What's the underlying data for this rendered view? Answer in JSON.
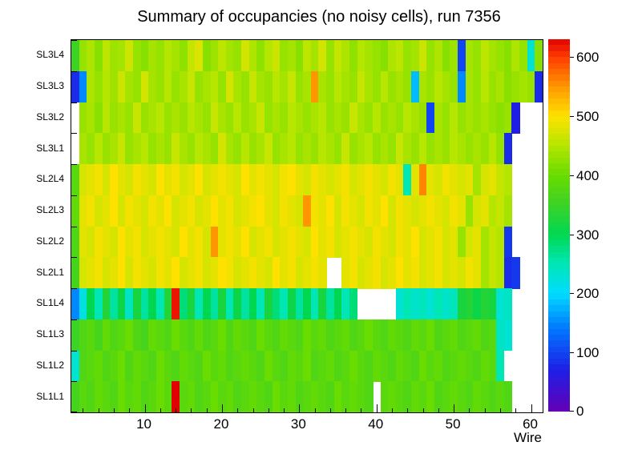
{
  "title": "Summary of occupancies (no noisy cells), run 7356",
  "axes": {
    "x_label": "Wire",
    "x_ticks": [
      10,
      20,
      30,
      40,
      50,
      60
    ],
    "colorbar_ticks": [
      0,
      100,
      200,
      300,
      400,
      500,
      600
    ]
  },
  "chart_data": {
    "type": "heatmap",
    "title": "Summary of occupancies (no noisy cells), run 7356",
    "xlabel": "Wire",
    "x_range": [
      1,
      61
    ],
    "zmax": 630,
    "legend_position": "right-colorbar",
    "grid": false,
    "palette": [
      {
        "value": 0,
        "color": "#6400b4"
      },
      {
        "value": 70,
        "color": "#1e1ee6"
      },
      {
        "value": 140,
        "color": "#0078ff"
      },
      {
        "value": 200,
        "color": "#00dcff"
      },
      {
        "value": 250,
        "color": "#00e6b4"
      },
      {
        "value": 300,
        "color": "#00d750"
      },
      {
        "value": 350,
        "color": "#3cd226"
      },
      {
        "value": 400,
        "color": "#69dc00"
      },
      {
        "value": 450,
        "color": "#b4e600"
      },
      {
        "value": 500,
        "color": "#ffe100"
      },
      {
        "value": 550,
        "color": "#ff9600"
      },
      {
        "value": 600,
        "color": "#ff3c00"
      },
      {
        "value": 630,
        "color": "#e10000"
      }
    ],
    "rows": [
      {
        "label": "SL3L4",
        "values": [
          350,
          430,
          445,
          420,
          455,
          435,
          440,
          465,
          430,
          420,
          440,
          430,
          450,
          440,
          425,
          460,
          475,
          420,
          435,
          455,
          440,
          430,
          470,
          445,
          425,
          450,
          465,
          430,
          440,
          420,
          455,
          440,
          470,
          430,
          460,
          445,
          425,
          450,
          440,
          430,
          420,
          445,
          455,
          430,
          440,
          465,
          430,
          445,
          420,
          435,
          100,
          440,
          430,
          455,
          440,
          430,
          420,
          445,
          430,
          230,
          420
        ]
      },
      {
        "label": "SL3L3",
        "values": [
          80,
          150,
          445,
          430,
          450,
          435,
          465,
          440,
          430,
          470,
          440,
          432,
          452,
          430,
          442,
          462,
          430,
          442,
          452,
          430,
          470,
          442,
          430,
          462,
          440,
          432,
          452,
          440,
          462,
          430,
          442,
          550,
          442,
          430,
          452,
          440,
          432,
          462,
          442,
          430,
          452,
          432,
          442,
          430,
          180,
          442,
          432,
          452,
          440,
          432,
          150,
          442,
          430,
          452,
          432,
          442,
          420,
          432,
          440,
          430,
          80
        ]
      },
      {
        "label": "SL3L2",
        "values": [
          null,
          432,
          442,
          422,
          452,
          432,
          442,
          432,
          462,
          432,
          442,
          452,
          430,
          442,
          432,
          452,
          442,
          430,
          462,
          442,
          430,
          452,
          432,
          442,
          462,
          430,
          442,
          432,
          452,
          442,
          430,
          442,
          452,
          430,
          442,
          432,
          462,
          442,
          430,
          452,
          432,
          442,
          430,
          452,
          442,
          432,
          100,
          442,
          430,
          452,
          430,
          442,
          432,
          442,
          430,
          422,
          432,
          70,
          null,
          null,
          null
        ]
      },
      {
        "label": "SL3L1",
        "values": [
          null,
          442,
          430,
          452,
          432,
          442,
          462,
          430,
          442,
          452,
          430,
          442,
          432,
          462,
          442,
          430,
          452,
          442,
          430,
          470,
          442,
          430,
          452,
          432,
          442,
          462,
          430,
          442,
          452,
          430,
          442,
          432,
          452,
          442,
          430,
          462,
          432,
          442,
          452,
          430,
          442,
          430,
          462,
          442,
          432,
          452,
          430,
          442,
          432,
          452,
          442,
          430,
          442,
          432,
          452,
          430,
          80,
          null,
          null,
          null,
          null
        ]
      },
      {
        "label": "SL2L4",
        "values": [
          380,
          472,
          482,
          492,
          472,
          500,
          482,
          472,
          492,
          482,
          472,
          500,
          482,
          492,
          472,
          482,
          500,
          472,
          482,
          492,
          482,
          472,
          500,
          482,
          492,
          482,
          472,
          492,
          500,
          482,
          472,
          492,
          482,
          472,
          482,
          492,
          472,
          482,
          492,
          482,
          472,
          492,
          482,
          250,
          482,
          560,
          482,
          472,
          492,
          482,
          472,
          482,
          440,
          472,
          482,
          460,
          450,
          null,
          null,
          null,
          null
        ]
      },
      {
        "label": "SL2L3",
        "values": [
          390,
          482,
          492,
          472,
          482,
          500,
          472,
          492,
          482,
          472,
          492,
          482,
          500,
          472,
          482,
          492,
          472,
          482,
          500,
          482,
          492,
          472,
          482,
          492,
          500,
          482,
          472,
          492,
          482,
          472,
          550,
          492,
          482,
          500,
          472,
          492,
          482,
          472,
          492,
          482,
          500,
          472,
          492,
          482,
          472,
          482,
          492,
          482,
          472,
          492,
          482,
          430,
          472,
          482,
          450,
          460,
          440,
          null,
          null,
          null,
          null
        ]
      },
      {
        "label": "SL2L2",
        "values": [
          370,
          482,
          472,
          492,
          482,
          472,
          500,
          482,
          492,
          472,
          482,
          492,
          482,
          472,
          500,
          482,
          492,
          472,
          550,
          482,
          492,
          482,
          500,
          472,
          482,
          492,
          472,
          482,
          492,
          482,
          472,
          500,
          482,
          492,
          472,
          482,
          492,
          482,
          472,
          492,
          482,
          472,
          492,
          482,
          500,
          472,
          482,
          492,
          472,
          482,
          430,
          472,
          482,
          440,
          460,
          450,
          90,
          null,
          null,
          null,
          null
        ]
      },
      {
        "label": "SL2L1",
        "values": [
          360,
          472,
          482,
          492,
          472,
          482,
          500,
          472,
          492,
          482,
          472,
          492,
          482,
          500,
          472,
          482,
          492,
          472,
          482,
          500,
          492,
          472,
          482,
          492,
          482,
          472,
          500,
          482,
          492,
          472,
          482,
          492,
          482,
          null,
          null,
          482,
          492,
          472,
          482,
          492,
          472,
          482,
          500,
          482,
          492,
          472,
          482,
          492,
          472,
          482,
          472,
          492,
          482,
          440,
          460,
          450,
          80,
          90,
          null,
          null,
          null
        ]
      },
      {
        "label": "SL1L4",
        "values": [
          150,
          220,
          300,
          250,
          330,
          260,
          310,
          240,
          320,
          260,
          300,
          250,
          330,
          620,
          280,
          320,
          250,
          300,
          260,
          320,
          250,
          310,
          260,
          300,
          250,
          320,
          280,
          250,
          310,
          260,
          300,
          250,
          320,
          260,
          300,
          250,
          280,
          null,
          null,
          null,
          null,
          null,
          230,
          250,
          235,
          245,
          230,
          250,
          235,
          245,
          320,
          330,
          310,
          330,
          320,
          230,
          240,
          null,
          null,
          null,
          null
        ]
      },
      {
        "label": "SL1L3",
        "values": [
          350,
          372,
          382,
          362,
          392,
          372,
          382,
          400,
          372,
          362,
          392,
          382,
          372,
          400,
          382,
          372,
          392,
          372,
          382,
          400,
          372,
          392,
          382,
          372,
          400,
          382,
          372,
          392,
          382,
          372,
          400,
          382,
          392,
          372,
          382,
          392,
          372,
          382,
          400,
          382,
          372,
          392,
          382,
          372,
          392,
          382,
          400,
          372,
          382,
          392,
          372,
          382,
          392,
          372,
          382,
          240,
          230,
          null,
          null,
          null,
          null
        ]
      },
      {
        "label": "SL1L2",
        "values": [
          230,
          372,
          382,
          392,
          372,
          382,
          400,
          372,
          392,
          382,
          372,
          400,
          382,
          372,
          392,
          382,
          372,
          400,
          382,
          392,
          372,
          382,
          392,
          382,
          372,
          400,
          382,
          372,
          392,
          382,
          400,
          372,
          382,
          392,
          372,
          382,
          400,
          382,
          372,
          392,
          382,
          372,
          392,
          382,
          372,
          400,
          382,
          392,
          372,
          382,
          392,
          382,
          372,
          392,
          382,
          250,
          null,
          null,
          null,
          null,
          null
        ]
      },
      {
        "label": "SL1L1",
        "values": [
          360,
          382,
          372,
          392,
          382,
          372,
          400,
          382,
          392,
          372,
          382,
          400,
          382,
          630,
          382,
          392,
          372,
          382,
          400,
          382,
          392,
          372,
          382,
          392,
          382,
          372,
          400,
          382,
          392,
          372,
          382,
          392,
          382,
          372,
          400,
          382,
          392,
          382,
          372,
          null,
          382,
          392,
          382,
          372,
          392,
          382,
          400,
          372,
          382,
          392,
          382,
          372,
          392,
          382,
          372,
          382,
          372,
          null,
          null,
          null,
          null
        ]
      }
    ]
  }
}
